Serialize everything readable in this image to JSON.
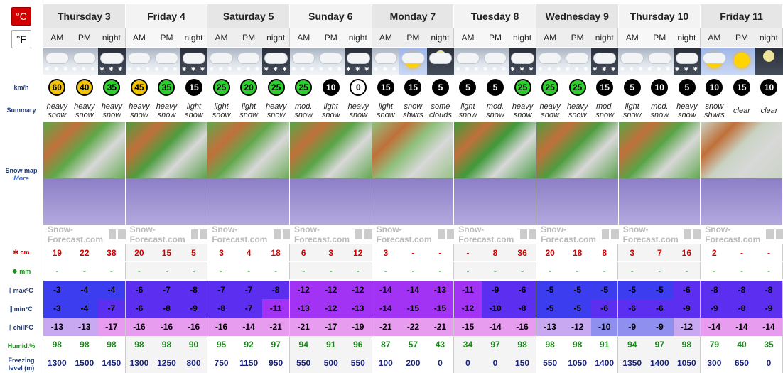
{
  "units": {
    "celsius": "°C",
    "fahrenheit": "°F"
  },
  "labels": {
    "wind": "km/h",
    "summary": "Summary",
    "snow_map": "Snow map",
    "more": "More",
    "snow": "cm",
    "rain": "mm",
    "max": "max°C",
    "min": "min°C",
    "chill": "chill°C",
    "humid": "Humid.%",
    "freezing1": "Freezing",
    "freezing2": "level (m)"
  },
  "logo_text": "Snow-Forecast.com",
  "days": [
    "Thursday 3",
    "Friday 4",
    "Saturday 5",
    "Sunday 6",
    "Monday 7",
    "Tuesday 8",
    "Wednesday 9",
    "Thursday 10",
    "Friday 11"
  ],
  "periods": [
    "AM",
    "PM",
    "night",
    "AM",
    "PM",
    "night",
    "AM",
    "PM",
    "night",
    "AM",
    "PM",
    "night",
    "AM",
    "PM",
    "night",
    "AM",
    "PM",
    "night",
    "AM",
    "PM",
    "night",
    "AM",
    "PM",
    "night",
    "AM",
    "PM",
    "night"
  ],
  "icons": [
    "snow",
    "snow",
    "snow-night",
    "snow",
    "snow",
    "snow-night",
    "snow",
    "snow",
    "snow-night",
    "snow",
    "snow",
    "snow-night",
    "snow",
    "sun-cloud",
    "moon-cloud",
    "snow",
    "snow",
    "snow-night",
    "snow",
    "snow",
    "snow-night",
    "snow",
    "snow",
    "snow-night",
    "sun-cloud",
    "sun",
    "moon"
  ],
  "wind": [
    "60",
    "40",
    "35",
    "45",
    "35",
    "15",
    "25",
    "20",
    "25",
    "25",
    "10",
    "0",
    "15",
    "15",
    "5",
    "5",
    "5",
    "25",
    "25",
    "25",
    "15",
    "5",
    "10",
    "5",
    "10",
    "15",
    "10"
  ],
  "wind_colors": [
    "#f5c400",
    "#f5c400",
    "#2bd12b",
    "#f5c400",
    "#2bd12b",
    "#000",
    "#2bd12b",
    "#2bd12b",
    "#2bd12b",
    "#2bd12b",
    "#000",
    "#fff",
    "#000",
    "#000",
    "#000",
    "#000",
    "#000",
    "#2bd12b",
    "#2bd12b",
    "#2bd12b",
    "#000",
    "#000",
    "#000",
    "#000",
    "#000",
    "#000",
    "#000"
  ],
  "summary": [
    [
      "heavy",
      "snow"
    ],
    [
      "heavy",
      "snow"
    ],
    [
      "heavy",
      "snow"
    ],
    [
      "heavy",
      "snow"
    ],
    [
      "heavy",
      "snow"
    ],
    [
      "light",
      "snow"
    ],
    [
      "light",
      "snow"
    ],
    [
      "light",
      "snow"
    ],
    [
      "heavy",
      "snow"
    ],
    [
      "mod.",
      "snow"
    ],
    [
      "light",
      "snow"
    ],
    [
      "heavy",
      "snow"
    ],
    [
      "light",
      "snow"
    ],
    [
      "snow",
      "shwrs"
    ],
    [
      "some",
      "clouds"
    ],
    [
      "light",
      "snow"
    ],
    [
      "mod.",
      "snow"
    ],
    [
      "heavy",
      "snow"
    ],
    [
      "heavy",
      "snow"
    ],
    [
      "heavy",
      "snow"
    ],
    [
      "mod.",
      "snow"
    ],
    [
      "light",
      "snow"
    ],
    [
      "mod.",
      "snow"
    ],
    [
      "heavy",
      "snow"
    ],
    [
      "snow",
      "shwrs"
    ],
    [
      "clear",
      ""
    ],
    [
      "clear",
      ""
    ]
  ],
  "snow_cm": [
    "19",
    "22",
    "38",
    "20",
    "15",
    "5",
    "3",
    "4",
    "18",
    "6",
    "3",
    "12",
    "3",
    "-",
    "-",
    "-",
    "8",
    "36",
    "20",
    "18",
    "8",
    "3",
    "7",
    "16",
    "2",
    "-",
    "-"
  ],
  "rain_mm": [
    "-",
    "-",
    "-",
    "-",
    "-",
    "-",
    "-",
    "-",
    "-",
    "-",
    "-",
    "-",
    "-",
    "-",
    "-",
    "-",
    "-",
    "-",
    "-",
    "-",
    "-",
    "-",
    "-",
    "-",
    "-",
    "-",
    "-"
  ],
  "max_c": [
    "-3",
    "-4",
    "-4",
    "-6",
    "-7",
    "-8",
    "-7",
    "-7",
    "-8",
    "-12",
    "-12",
    "-12",
    "-14",
    "-14",
    "-13",
    "-11",
    "-9",
    "-6",
    "-5",
    "-5",
    "-5",
    "-5",
    "-5",
    "-6",
    "-8",
    "-8",
    "-8"
  ],
  "min_c": [
    "-3",
    "-4",
    "-7",
    "-6",
    "-8",
    "-9",
    "-8",
    "-7",
    "-11",
    "-13",
    "-12",
    "-13",
    "-14",
    "-15",
    "-15",
    "-12",
    "-10",
    "-8",
    "-5",
    "-5",
    "-6",
    "-6",
    "-6",
    "-9",
    "-9",
    "-8",
    "-9"
  ],
  "chill_c": [
    "-13",
    "-13",
    "-17",
    "-16",
    "-16",
    "-16",
    "-16",
    "-14",
    "-21",
    "-21",
    "-17",
    "-19",
    "-21",
    "-22",
    "-21",
    "-15",
    "-14",
    "-16",
    "-13",
    "-12",
    "-10",
    "-9",
    "-9",
    "-12",
    "-14",
    "-14",
    "-14"
  ],
  "humid": [
    "98",
    "98",
    "98",
    "98",
    "98",
    "90",
    "95",
    "92",
    "97",
    "94",
    "91",
    "96",
    "87",
    "57",
    "43",
    "34",
    "97",
    "98",
    "98",
    "98",
    "91",
    "94",
    "97",
    "98",
    "79",
    "40",
    "35"
  ],
  "freezing": [
    "1300",
    "1500",
    "1450",
    "1300",
    "1250",
    "800",
    "750",
    "1150",
    "950",
    "550",
    "500",
    "550",
    "100",
    "200",
    "0",
    "0",
    "0",
    "150",
    "550",
    "1050",
    "1400",
    "1350",
    "1400",
    "1050",
    "300",
    "650",
    "0"
  ],
  "colors": {
    "max_blue": "#3d3df0",
    "purple": "#7b20e8",
    "violet": "#a232f4",
    "chill_pink": "#e79cf0",
    "chill_lav": "#c8a8f0",
    "chill_blue": "#8f8ff0"
  }
}
